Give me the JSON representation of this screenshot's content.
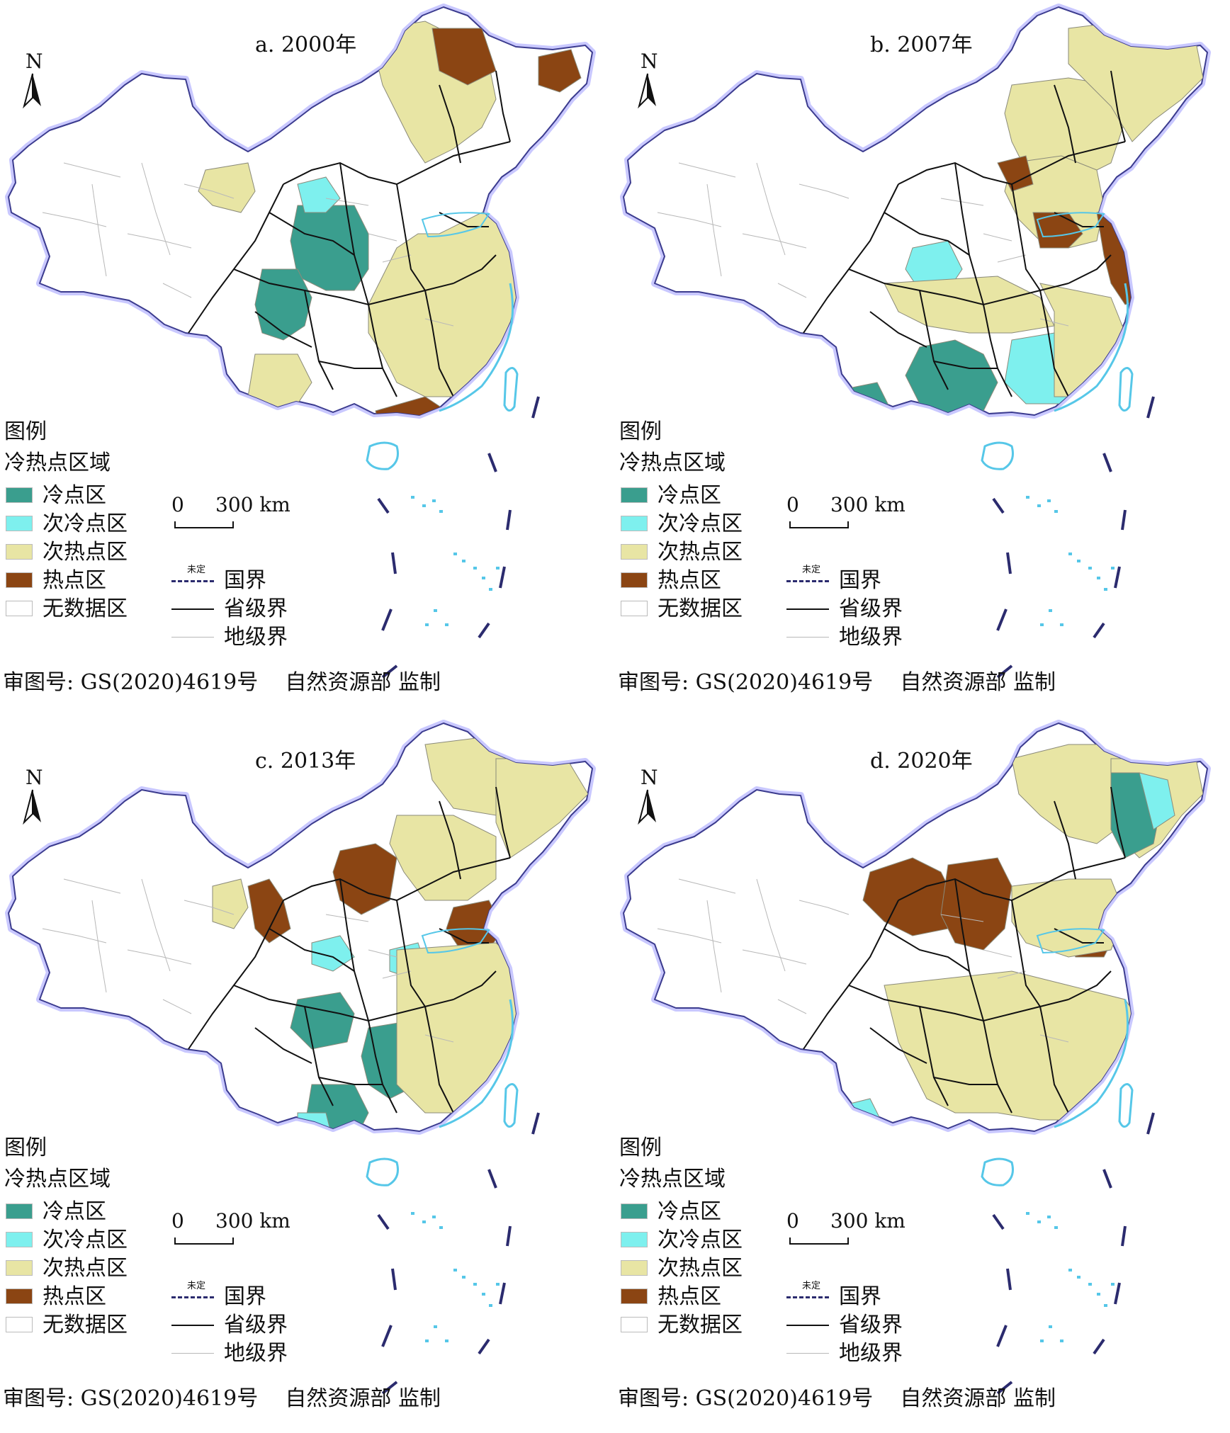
{
  "legend": {
    "title": "图例",
    "subtitle": "冷热点区域",
    "categories": [
      {
        "label": "冷点区",
        "color": "#3a9e8e"
      },
      {
        "label": "次冷点区",
        "color": "#7ef0ee"
      },
      {
        "label": "次热点区",
        "color": "#e8e5a4"
      },
      {
        "label": "热点区",
        "color": "#8b4513"
      },
      {
        "label": "无数据区",
        "color": "#ffffff"
      }
    ],
    "lines": {
      "national": "国界",
      "undetermined": "未定",
      "provincial": "省级界",
      "prefectural": "地级界"
    },
    "scale": {
      "start": "0",
      "end": "300 km"
    },
    "north": "N"
  },
  "footer": {
    "review_no": "审图号: GS(2020)4619号",
    "authority": "自然资源部  监制"
  },
  "panels": [
    {
      "title": "a. 2000年"
    },
    {
      "title": "b. 2007年"
    },
    {
      "title": "c. 2013年"
    },
    {
      "title": "d. 2020年"
    }
  ]
}
